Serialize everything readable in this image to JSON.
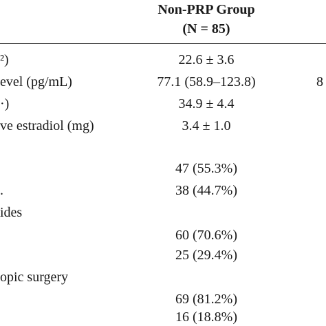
{
  "table": {
    "header": {
      "group": "Non-PRP Group",
      "n": "(N = 85)"
    },
    "rows": [
      {
        "label": "²)",
        "value": "22.6 ± 3.6",
        "value2": ""
      },
      {
        "label": "evel (pg/mL)",
        "value": "77.1 (58.9–123.8)",
        "value2": "8"
      },
      {
        "label": "·)",
        "value": "34.9 ± 4.4",
        "value2": ""
      },
      {
        "label": "ve estradiol (mg)",
        "value": "3.4 ± 1.0",
        "value2": ""
      },
      {
        "label": "",
        "value": "",
        "value2": ""
      },
      {
        "label": "",
        "value": "47 (55.3%)",
        "value2": ""
      },
      {
        "label": ".",
        "value": "38 (44.7%)",
        "value2": ""
      },
      {
        "label": "ides",
        "value": "",
        "value2": ""
      },
      {
        "label": "",
        "value": "60 (70.6%)",
        "value2": ""
      },
      {
        "label": "",
        "value": "25 (29.4%)",
        "value2": ""
      },
      {
        "label": "opic surgery",
        "value": "",
        "value2": ""
      },
      {
        "label": "",
        "value": "69 (81.2%)",
        "value2": ""
      },
      {
        "label": "",
        "value": "16 (18.8%)",
        "value2": ""
      }
    ]
  }
}
